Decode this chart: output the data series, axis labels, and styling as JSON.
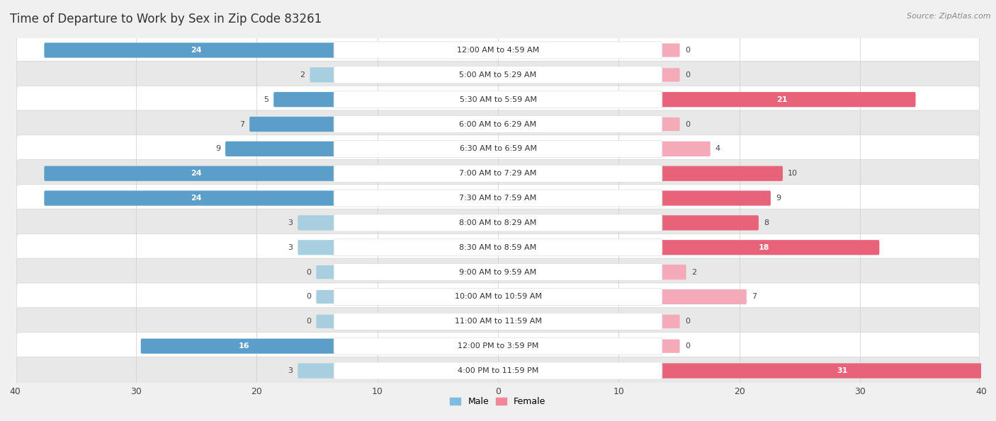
{
  "title": "Time of Departure to Work by Sex in Zip Code 83261",
  "source": "Source: ZipAtlas.com",
  "categories": [
    "12:00 AM to 4:59 AM",
    "5:00 AM to 5:29 AM",
    "5:30 AM to 5:59 AM",
    "6:00 AM to 6:29 AM",
    "6:30 AM to 6:59 AM",
    "7:00 AM to 7:29 AM",
    "7:30 AM to 7:59 AM",
    "8:00 AM to 8:29 AM",
    "8:30 AM to 8:59 AM",
    "9:00 AM to 9:59 AM",
    "10:00 AM to 10:59 AM",
    "11:00 AM to 11:59 AM",
    "12:00 PM to 3:59 PM",
    "4:00 PM to 11:59 PM"
  ],
  "male_values": [
    24,
    2,
    5,
    7,
    9,
    24,
    24,
    3,
    3,
    0,
    0,
    0,
    16,
    3
  ],
  "female_values": [
    0,
    0,
    21,
    0,
    4,
    10,
    9,
    8,
    18,
    2,
    7,
    0,
    0,
    31
  ],
  "male_color_dark": "#5b9ec9",
  "male_color_light": "#a8cfe0",
  "female_color_dark": "#e8637a",
  "female_color_light": "#f4aab8",
  "axis_limit": 40,
  "bg_color": "#f0f0f0",
  "row_bg_white": "#ffffff",
  "row_bg_gray": "#e8e8e8",
  "title_fontsize": 12,
  "source_fontsize": 8,
  "label_fontsize": 8,
  "cat_fontsize": 8,
  "tick_fontsize": 9,
  "legend_male_color": "#7fbde0",
  "legend_female_color": "#f08898"
}
